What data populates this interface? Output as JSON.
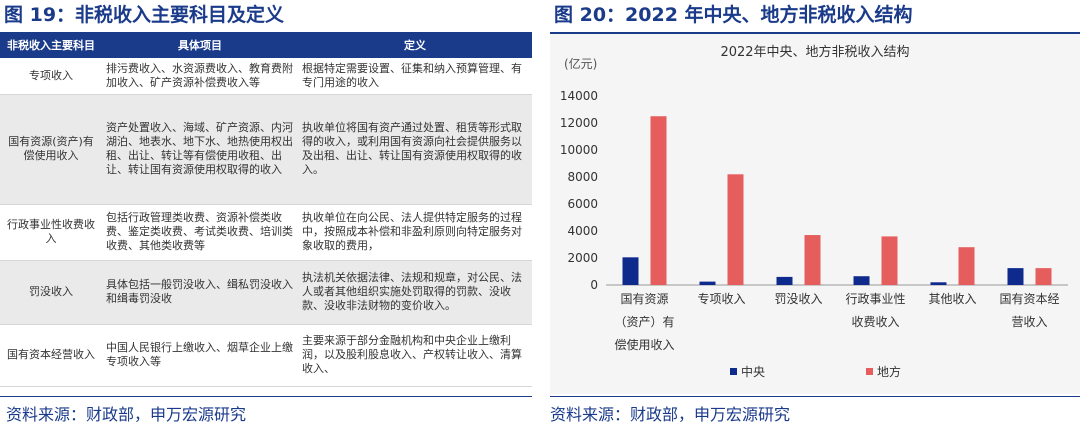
{
  "left": {
    "title": "图 19：非税收入主要科目及定义",
    "headers": [
      "非税收入主要科目",
      "具体项目",
      "定义"
    ],
    "rows": [
      {
        "name": "专项收入",
        "items": "排污费收入、水资源费收入、教育费附加收入、矿产资源补偿费收入等",
        "definition": "根据特定需要设置、征集和纳入预算管理、有专门用途的收入"
      },
      {
        "name": "国有资源(资产)有偿使用收入",
        "items": "资产处置收入、海域、矿产资源、内河湖泊、地表水、地下水、地热使用权出租、出让、转让等有偿使用收租、出让、转让国有资源使用权取得的收入",
        "definition": "执收单位将国有资产通过处置、租赁等形式取得的收入，或利用国有资源向社会提供服务以及出租、出让、转让国有资源使用权取得的收入。"
      },
      {
        "name": "行政事业性收费收入",
        "items": "包括行政管理类收费、资源补偿类收费、鉴定类收费、考试类收费、培训类收费、其他类收费等",
        "definition": "执收单位在向公民、法人提供特定服务的过程中，按照成本补偿和非盈利原则向特定服务对象收取的费用，"
      },
      {
        "name": "罚没收入",
        "items": "具体包括一般罚没收入、缉私罚没收入和缉毒罚没收",
        "definition": "执法机关依据法律、法规和规章，对公民、法人或者其他组织实施处罚取得的罚款、没收款、没收非法财物的变价收入。"
      },
      {
        "name": "国有资本经营收入",
        "items": "中国人民银行上缴收入、烟草企业上缴专项收入等",
        "definition": "主要来源于部分金融机构和中央企业上缴利润，以及股利股息收入、产权转让收入、清算收入、"
      }
    ],
    "source": "资料来源：财政部，申万宏源研究"
  },
  "right": {
    "title": "图 20：2022 年中央、地方非税收入结构",
    "source": "资料来源：财政部，申万宏源研究"
  },
  "chart_data": {
    "type": "bar",
    "title": "2022年中央、地方非税收入结构",
    "unit_label": "(亿元)",
    "categories": [
      [
        "国有资源",
        "（资产）有",
        "偿使用收入"
      ],
      [
        "专项收入"
      ],
      [
        "罚没收入"
      ],
      [
        "行政事业性",
        "收费收入"
      ],
      [
        "其他收入"
      ],
      [
        "国有资本经",
        "营收入"
      ]
    ],
    "series": [
      {
        "name": "中央",
        "color": "#0e2a8c",
        "values": [
          2050,
          250,
          600,
          650,
          200,
          1250
        ]
      },
      {
        "name": "地方",
        "color": "#e55d5d",
        "values": [
          12500,
          8200,
          3700,
          3600,
          2800,
          1250
        ]
      }
    ],
    "ylim": [
      0,
      14000
    ],
    "yticks": [
      0,
      2000,
      4000,
      6000,
      8000,
      10000,
      12000,
      14000
    ],
    "legend_position": "bottom",
    "grid": false
  }
}
